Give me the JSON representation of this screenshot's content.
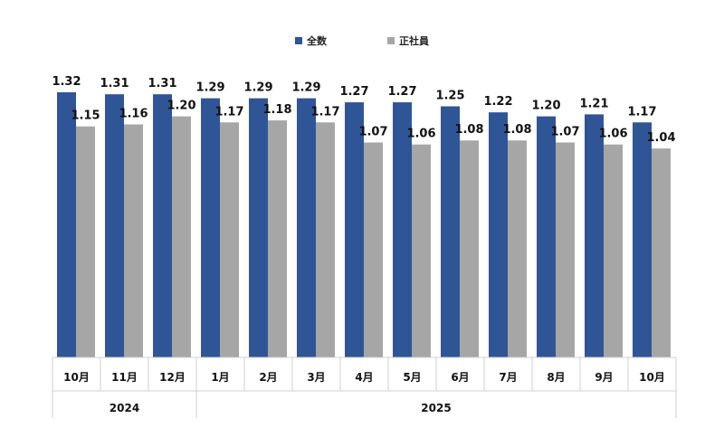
{
  "chart_data": {
    "type": "bar",
    "categories": [
      "10月",
      "11月",
      "12月",
      "1月",
      "2月",
      "3月",
      "4月",
      "5月",
      "6月",
      "7月",
      "8月",
      "9月",
      "10月"
    ],
    "groups": [
      {
        "label": "2024",
        "span": 3
      },
      {
        "label": "2025",
        "span": 10
      }
    ],
    "series": [
      {
        "name": "全数",
        "color": "#2f5597",
        "values": [
          1.32,
          1.31,
          1.31,
          1.29,
          1.29,
          1.29,
          1.27,
          1.27,
          1.25,
          1.22,
          1.2,
          1.21,
          1.17
        ]
      },
      {
        "name": "正社員",
        "color": "#a6a6a6",
        "values": [
          1.15,
          1.16,
          1.2,
          1.17,
          1.18,
          1.17,
          1.07,
          1.06,
          1.08,
          1.08,
          1.07,
          1.06,
          1.04
        ]
      }
    ],
    "ylim": [
      0,
      1.32
    ],
    "legend_position": "top-center",
    "grid": false
  }
}
